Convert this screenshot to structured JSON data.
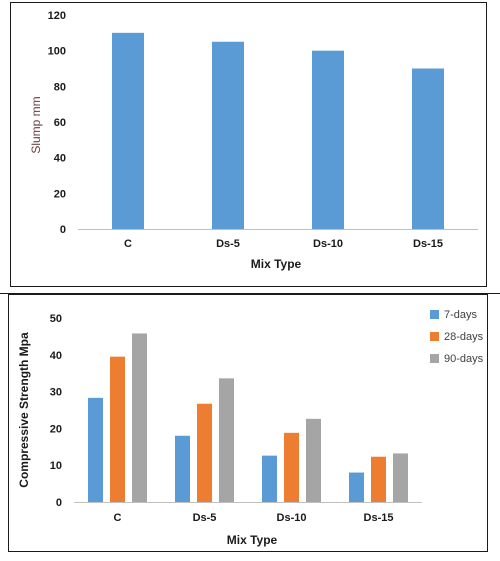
{
  "chart_data": [
    {
      "type": "bar",
      "title": "",
      "xlabel": "Mix Type",
      "ylabel": "Slump mm",
      "categories": [
        "C",
        "Ds-5",
        "Ds-10",
        "Ds-15"
      ],
      "values": [
        110,
        105,
        100,
        90
      ],
      "ylim": [
        0,
        120
      ],
      "yticks": [
        0,
        20,
        40,
        60,
        80,
        100,
        120
      ],
      "grid": false,
      "legend": "none",
      "color": "#5b9bd5"
    },
    {
      "type": "bar",
      "title": "",
      "xlabel": "Mix Type",
      "ylabel": "Compressive Strength Mpa",
      "categories": [
        "C",
        "Ds-5",
        "Ds-10",
        "Ds-15"
      ],
      "series": [
        {
          "name": "7-days",
          "values": [
            28.3,
            18.0,
            12.6,
            8.0
          ],
          "color": "#5b9bd5"
        },
        {
          "name": "28-days",
          "values": [
            39.5,
            26.7,
            18.8,
            12.3
          ],
          "color": "#ed7d31"
        },
        {
          "name": "90-days",
          "values": [
            45.8,
            33.6,
            22.6,
            13.2
          ],
          "color": "#a5a5a5"
        }
      ],
      "ylim": [
        0,
        50
      ],
      "yticks": [
        0,
        10,
        20,
        30,
        40,
        50
      ],
      "grid": false,
      "legend": "right"
    }
  ]
}
